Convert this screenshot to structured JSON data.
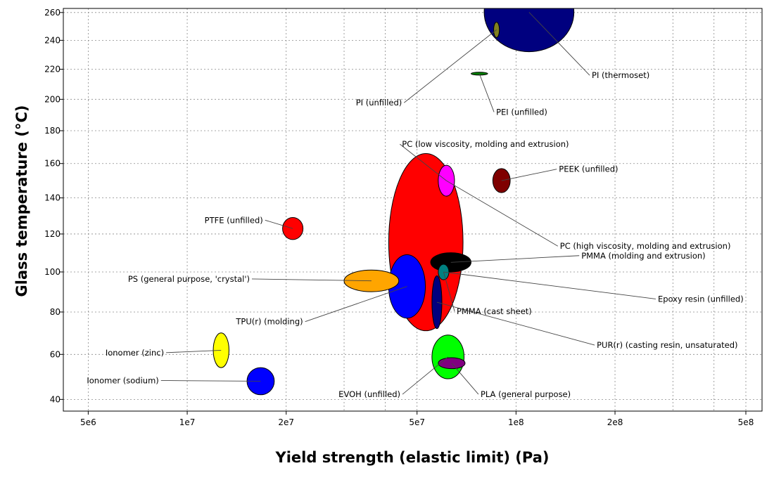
{
  "chart_data": {
    "type": "scatter",
    "xlabel": "Yield strength (elastic limit) (Pa)",
    "ylabel": "Glass temperature (°C)",
    "x_scale": "log",
    "y_scale": "log-kelvin",
    "xlim": [
      4200000,
      560000000
    ],
    "ylim": [
      35,
      263
    ],
    "grid": true,
    "x_ticks": [
      {
        "value": 5000000,
        "label": "5e6"
      },
      {
        "value": 10000000,
        "label": "1e7"
      },
      {
        "value": 20000000,
        "label": "2e7"
      },
      {
        "value": 50000000,
        "label": "5e7"
      },
      {
        "value": 100000000,
        "label": "1e8"
      },
      {
        "value": 200000000,
        "label": "2e8"
      },
      {
        "value": 500000000,
        "label": "5e8"
      }
    ],
    "x_minor_grid": [
      30000000,
      40000000,
      300000000,
      400000000
    ],
    "y_ticks": [
      {
        "value": 40,
        "label": "40"
      },
      {
        "value": 60,
        "label": "60"
      },
      {
        "value": 80,
        "label": "80"
      },
      {
        "value": 100,
        "label": "100"
      },
      {
        "value": 120,
        "label": "120"
      },
      {
        "value": 140,
        "label": "140"
      },
      {
        "value": 160,
        "label": "160"
      },
      {
        "value": 180,
        "label": "180"
      },
      {
        "value": 200,
        "label": "200"
      },
      {
        "value": 220,
        "label": "220"
      },
      {
        "value": 240,
        "label": "240"
      },
      {
        "value": 260,
        "label": "260"
      }
    ],
    "materials": [
      {
        "name": "PI (thermoset)",
        "color": "#00007f",
        "x_range": [
          80000000,
          150000000
        ],
        "y_range": [
          232,
          290
        ],
        "label_x": 170000000,
        "label_y": 214,
        "anchor": "start",
        "label_display": "PI (thermoset)"
      },
      {
        "name": "PI (unfilled)",
        "color": "#808020",
        "x_range": [
          85500000,
          89000000
        ],
        "y_range": [
          242,
          253
        ],
        "label_x": 45000000,
        "label_y": 196,
        "anchor": "end",
        "label_display": "PI (unfilled)"
      },
      {
        "name": "PEI (unfilled)",
        "color": "#008000",
        "x_range": [
          73000000,
          82000000
        ],
        "y_range": [
          216,
          218
        ],
        "label_x": 87000000,
        "label_y": 190,
        "anchor": "start",
        "label_display": "PEI (unfilled)"
      },
      {
        "name": "PC (low viscosity, molding and extrusion)",
        "color": "#ff00ff",
        "x_range": [
          58000000,
          65000000
        ],
        "y_range": [
          141,
          159
        ],
        "label_x": 45000000,
        "label_y": 170,
        "anchor": "start",
        "label_display": "PC (low viscosity, molding and extrusion)"
      },
      {
        "name": "PEEK (unfilled)",
        "color": "#7f0000",
        "x_range": [
          85000000,
          96000000
        ],
        "y_range": [
          143,
          157
        ],
        "label_x": 135000000,
        "label_y": 155,
        "anchor": "start",
        "label_display": "PEEK (unfilled)"
      },
      {
        "name": "PC (high viscosity, molding and extrusion)",
        "color": "#ff00ff",
        "x_range": [
          58000000,
          65000000
        ],
        "y_range": [
          141,
          159
        ],
        "label_x": 136000000,
        "label_y": 112,
        "anchor": "start",
        "label_display": "PC (high viscosity, molding and extrusion)"
      },
      {
        "name": "PTFE (unfilled)",
        "color": "#ff0000",
        "x_range": [
          19500000,
          22500000
        ],
        "y_range": [
          117,
          129
        ],
        "label_x": 17000000,
        "label_y": 126,
        "anchor": "end",
        "label_display": "PTFE (unfilled)"
      },
      {
        "name": "PS (general purpose, 'crystal')",
        "color": "#ffa500",
        "x_range": [
          30000000,
          44000000
        ],
        "y_range": [
          90,
          101
        ],
        "label_x": 15500000,
        "label_y": 95,
        "anchor": "end",
        "label_display": "PS (general purpose, 'crystal')"
      },
      {
        "name": "PMMA (molding and extrusion)",
        "color": "#000000",
        "x_range": [
          55000000,
          73000000
        ],
        "y_range": [
          100,
          110
        ],
        "label_x": 158000000,
        "label_y": 107,
        "anchor": "start",
        "label_display": "PMMA (molding and extrusion)"
      },
      {
        "name": "PMMA (cast sheet)",
        "color": "#008080",
        "x_range": [
          58000000,
          62500000
        ],
        "y_range": [
          96,
          104
        ],
        "label_x": 66000000,
        "label_y": 79,
        "anchor": "start",
        "label_display": "PMMA (cast sheet)"
      },
      {
        "name": "Epoxy resin (unfilled)",
        "color": "#008080",
        "x_range": [
          58000000,
          62500000
        ],
        "y_range": [
          96,
          104
        ],
        "label_x": 270000000,
        "label_y": 85,
        "anchor": "start",
        "label_display": "Epoxy resin (unfilled)"
      },
      {
        "name": "TPU(r) (molding)",
        "color": "#0000ff",
        "x_range": [
          41000000,
          53000000
        ],
        "y_range": [
          77,
          109
        ],
        "label_x": 22500000,
        "label_y": 74,
        "anchor": "end",
        "label_display": "TPU(r) (molding)"
      },
      {
        "name": "",
        "color": "#ff0000",
        "x_range": [
          41000000,
          69000000
        ],
        "y_range": [
          71,
          166
        ],
        "label_x": 0,
        "label_y": 0,
        "anchor": "none",
        "label_display": ""
      },
      {
        "name": "PUR(r) (casting resin, unsaturated)",
        "color": "#00007f",
        "x_range": [
          55500000,
          59500000
        ],
        "y_range": [
          72,
          98
        ],
        "label_x": 176000000,
        "label_y": 63,
        "anchor": "start",
        "label_display": "PUR(r) (casting resin, unsaturated)"
      },
      {
        "name": "EVOH (unfilled)",
        "color": "#00ff00",
        "x_range": [
          55500000,
          69500000
        ],
        "y_range": [
          49,
          69
        ],
        "label_x": 44500000,
        "label_y": 41,
        "anchor": "end",
        "label_display": "EVOH (unfilled)"
      },
      {
        "name": "PLA (general purpose)",
        "color": "#800080",
        "x_range": [
          58000000,
          70000000
        ],
        "y_range": [
          53.5,
          58.5
        ],
        "label_x": 78000000,
        "label_y": 41,
        "anchor": "start",
        "label_display": "PLA (general purpose)"
      },
      {
        "name": "Ionomer (zinc)",
        "color": "#ffff00",
        "x_range": [
          12000000,
          13400000
        ],
        "y_range": [
          54,
          70
        ],
        "label_x": 8500000,
        "label_y": 59.5,
        "anchor": "end",
        "label_display": "Ionomer (zinc)"
      },
      {
        "name": "Ionomer (sodium)",
        "color": "#0000ff",
        "x_range": [
          15200000,
          18400000
        ],
        "y_range": [
          42,
          54
        ],
        "label_x": 8200000,
        "label_y": 47,
        "anchor": "end",
        "label_display": "Ionomer (sodium)"
      }
    ]
  }
}
